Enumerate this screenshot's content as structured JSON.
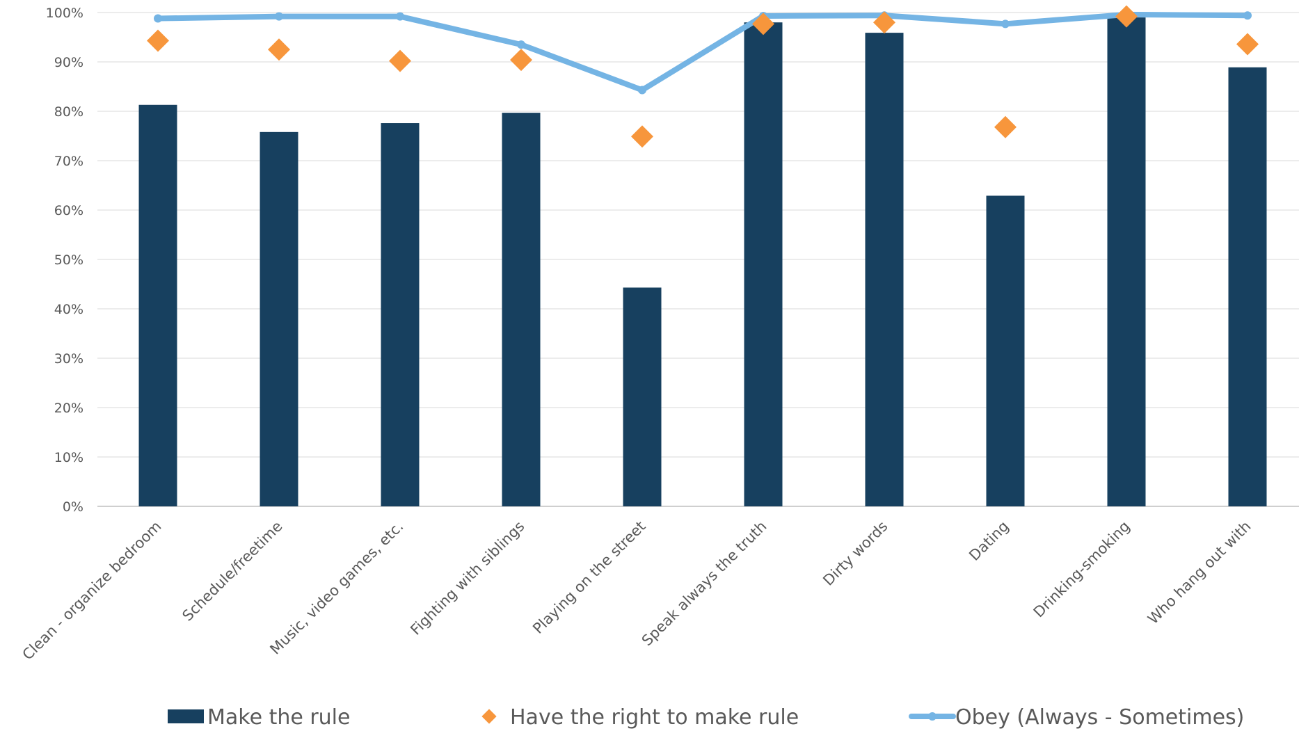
{
  "chart_data": {
    "type": "bar",
    "categories": [
      "Clean - organize bedroom",
      "Schedule/freetime",
      "Music, video games, etc.",
      "Fighting with siblings",
      "Playing on the street",
      "Speak always the truth",
      "Dirty words",
      "Dating",
      "Drinking-smoking",
      "Who hang out with"
    ],
    "series": [
      {
        "name": "Make the rule",
        "kind": "bar",
        "color": "#17405f",
        "values": [
          81.3,
          75.8,
          77.6,
          79.7,
          44.3,
          98.0,
          95.9,
          62.9,
          99.0,
          88.9
        ]
      },
      {
        "name": "Have the right to make rule",
        "kind": "marker",
        "color": "#f7963c",
        "values": [
          94.3,
          92.5,
          90.2,
          90.4,
          74.9,
          97.7,
          98.0,
          76.8,
          99.2,
          93.6
        ]
      },
      {
        "name": "Obey (Always - Sometimes)",
        "kind": "line",
        "color": "#74b4e4",
        "values": [
          98.8,
          99.2,
          99.2,
          93.5,
          84.3,
          99.3,
          99.4,
          97.7,
          99.6,
          99.4
        ]
      }
    ],
    "yticks": [
      "0%",
      "10%",
      "20%",
      "30%",
      "40%",
      "50%",
      "60%",
      "70%",
      "80%",
      "90%",
      "100%"
    ],
    "ylim": [
      0,
      100
    ],
    "grid": true,
    "legend_position": "bottom",
    "title": "",
    "xlabel": "",
    "ylabel": ""
  }
}
